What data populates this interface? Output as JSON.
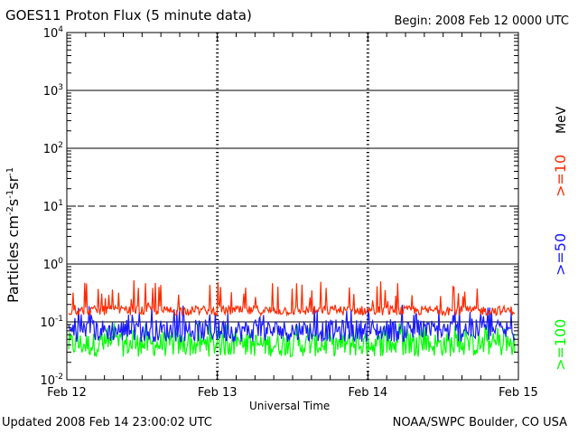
{
  "header": {
    "title": "GOES11 Proton Flux (5 minute data)",
    "begin": "Begin: 2008 Feb 12 0000 UTC"
  },
  "footer": {
    "updated": "Updated 2008 Feb 14 23:00:02 UTC",
    "org": "NOAA/SWPC Boulder, CO USA"
  },
  "chart_data": {
    "type": "line",
    "ylabel_main": "Particles cm",
    "ylabel_exps": [
      "-2",
      "s",
      "-1",
      "sr",
      "-1"
    ],
    "xlabel": "Universal Time",
    "yscale": "log",
    "ylim": [
      0.01,
      10000
    ],
    "yticks": [
      {
        "base": "10",
        "exp": "-2"
      },
      {
        "base": "10",
        "exp": "-1"
      },
      {
        "base": "10",
        "exp": "0"
      },
      {
        "base": "10",
        "exp": "1"
      },
      {
        "base": "10",
        "exp": "2"
      },
      {
        "base": "10",
        "exp": "3"
      },
      {
        "base": "10",
        "exp": "4"
      }
    ],
    "xlim": [
      "2008-02-12",
      "2008-02-15"
    ],
    "xticks": [
      {
        "label": "Feb 12"
      },
      {
        "label": "Feb 13"
      },
      {
        "label": "Feb 14"
      },
      {
        "label": "Feb 15"
      }
    ],
    "threshold_lines": [
      0.1,
      1,
      10,
      100,
      1000
    ],
    "dashed_line": 10,
    "series_label_units": "MeV",
    "series": [
      {
        "name": ">=10",
        "color": "#ff2a00",
        "typical": 0.17,
        "min": 0.13,
        "max": 0.55
      },
      {
        "name": ">=50",
        "color": "#1a1aff",
        "typical": 0.085,
        "min": 0.045,
        "max": 0.2
      },
      {
        "name": ">=100",
        "color": "#00ff00",
        "typical": 0.05,
        "min": 0.025,
        "max": 0.1
      }
    ]
  }
}
